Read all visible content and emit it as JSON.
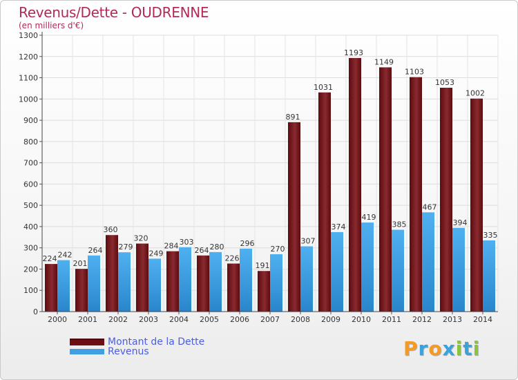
{
  "header": {
    "title": "Revenus/Dette - OUDRENNE",
    "subtitle": "(en milliers d'€)"
  },
  "chart_data": {
    "type": "bar",
    "title": "Revenus/Dette - OUDRENNE",
    "ylabel": "(en milliers d'€)",
    "xlabel": "",
    "categories": [
      "2000",
      "2001",
      "2002",
      "2003",
      "2004",
      "2005",
      "2006",
      "2007",
      "2008",
      "2009",
      "2010",
      "2011",
      "2012",
      "2013",
      "2014"
    ],
    "series": [
      {
        "name": "Montant de la Dette",
        "color": "#7a1a1f",
        "values": [
          224,
          201,
          360,
          320,
          284,
          264,
          226,
          191,
          891,
          1031,
          1193,
          1149,
          1103,
          1053,
          1002
        ],
        "labels": [
          "224",
          "201",
          "360",
          "320",
          "284",
          "264",
          "226",
          "191",
          "891",
          "1031",
          "1193",
          "1149",
          "1103",
          "1053",
          "1002"
        ]
      },
      {
        "name": "Revenus",
        "color": "#3f9fe2",
        "values": [
          242,
          264,
          279,
          249,
          303,
          280,
          296,
          270,
          307,
          374,
          419,
          385,
          467,
          394,
          335
        ],
        "labels": [
          "242",
          "264",
          "279",
          "249",
          "303",
          "280",
          "296",
          "270",
          "307",
          "374",
          "419",
          "385",
          "467",
          "394",
          "335"
        ]
      }
    ],
    "ylim": [
      0,
      1300
    ],
    "yticks": [
      0,
      100,
      200,
      300,
      400,
      500,
      600,
      700,
      800,
      900,
      1000,
      1100,
      1200,
      1300
    ],
    "grid": true,
    "legend": "bottom-left"
  },
  "legend": {
    "items": [
      {
        "label": "Montant de la Dette",
        "color": "#6b0f14"
      },
      {
        "label": "Revenus",
        "color": "#3f9fe2"
      }
    ]
  },
  "brand": {
    "letters": [
      "P",
      "r",
      "o",
      "x",
      "i",
      "t",
      "i"
    ],
    "colors": [
      "#f59a23",
      "#3aa2dd",
      "#f59a23",
      "#3aa2dd",
      "#8ac43f",
      "#3aa2dd",
      "#8ac43f"
    ]
  }
}
